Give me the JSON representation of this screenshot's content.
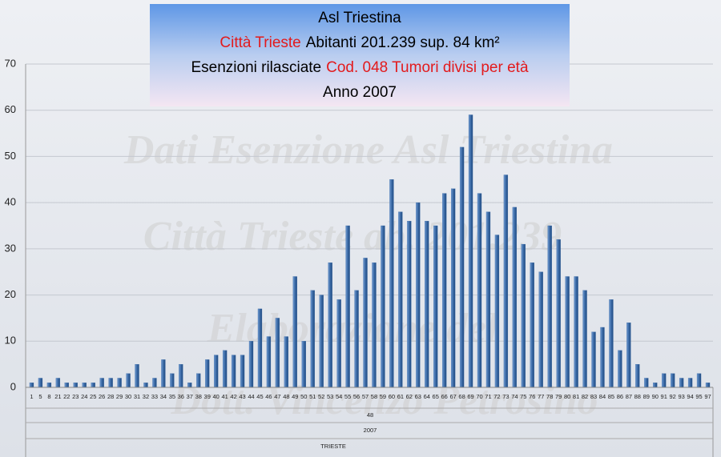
{
  "chart_data": {
    "type": "bar",
    "title_lines": [
      [
        {
          "text": "Asl Triestina",
          "color": "#000000"
        }
      ],
      [
        {
          "text": "Città Trieste",
          "color": "#e31a1c"
        },
        {
          "text": "Abitanti 201.239  sup. 84 km²",
          "color": "#000000"
        }
      ],
      [
        {
          "text": "Esenzioni rilasciate",
          "color": "#000000"
        },
        {
          "text": "Cod. 048 Tumori divisi per età",
          "color": "#e31a1c"
        }
      ],
      [
        {
          "text": "Anno 2007",
          "color": "#000000"
        }
      ]
    ],
    "watermarks": [
      "Dati Esenzione Asl Triestina",
      "Città Trieste ab. 201.239",
      "Elaborazione del",
      "Dott. Vincenzo Petrosino"
    ],
    "categories": [
      "1",
      "5",
      "8",
      "21",
      "22",
      "23",
      "24",
      "25",
      "26",
      "28",
      "29",
      "30",
      "31",
      "32",
      "33",
      "34",
      "35",
      "36",
      "37",
      "38",
      "39",
      "40",
      "41",
      "42",
      "43",
      "44",
      "45",
      "46",
      "47",
      "48",
      "49",
      "50",
      "51",
      "52",
      "53",
      "54",
      "55",
      "56",
      "57",
      "58",
      "59",
      "60",
      "61",
      "62",
      "63",
      "64",
      "65",
      "66",
      "67",
      "68",
      "69",
      "70",
      "71",
      "72",
      "73",
      "74",
      "75",
      "76",
      "77",
      "78",
      "79",
      "80",
      "81",
      "82",
      "83",
      "84",
      "85",
      "86",
      "87",
      "88",
      "89",
      "90",
      "91",
      "92",
      "93",
      "94",
      "95",
      "97"
    ],
    "values": [
      1,
      2,
      1,
      2,
      1,
      1,
      1,
      1,
      2,
      2,
      2,
      3,
      5,
      1,
      2,
      6,
      3,
      5,
      1,
      3,
      6,
      7,
      8,
      7,
      7,
      10,
      17,
      11,
      15,
      11,
      24,
      10,
      21,
      20,
      27,
      19,
      35,
      21,
      28,
      27,
      35,
      45,
      38,
      36,
      40,
      36,
      35,
      42,
      43,
      52,
      59,
      42,
      38,
      33,
      46,
      39,
      31,
      27,
      25,
      35,
      32,
      24,
      24,
      21,
      12,
      13,
      19,
      8,
      14,
      5,
      2,
      1,
      3,
      3,
      2,
      2,
      3,
      1
    ],
    "group_labels": [
      "48",
      "2007",
      "TRIESTE"
    ],
    "color": "#3b6aa6",
    "ylim": [
      0,
      70
    ],
    "yticks": [
      0,
      10,
      20,
      30,
      40,
      50,
      60,
      70
    ],
    "grid": true
  }
}
